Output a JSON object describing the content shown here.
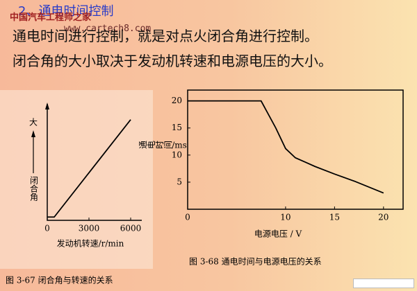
{
  "title": "2、通电时间控制",
  "watermark": [
    "中国汽车工程师之家",
    "www.cartech8.com"
  ],
  "body": [
    "通电时间进行控制，就是对点火闭合角进行控制。",
    "闭合角的大小取决于发动机转速和电源电压的大小。"
  ],
  "chart_data": [
    {
      "type": "line",
      "caption": "图 3-67  闭合角与转速的关系",
      "x_label": "发动机转速/r/min",
      "y_label": "闭合角",
      "y_max_label": "大",
      "x": [
        0,
        500,
        6000
      ],
      "values": [
        3,
        3,
        92
      ],
      "color": "#000000",
      "xlim": [
        0,
        6600
      ],
      "xticks": [
        0,
        3000,
        6000
      ],
      "ylim": [
        0,
        100
      ]
    },
    {
      "type": "line",
      "caption": "图 3-68  通电时间与电源电压的关系",
      "x_label": "电源电压 / V",
      "y_label": "通电时间/ms",
      "x": [
        0,
        7.5,
        9,
        10,
        11,
        12,
        13,
        15,
        17,
        20
      ],
      "values": [
        20,
        20,
        15,
        11.2,
        9.5,
        8.7,
        7.9,
        6.5,
        5.2,
        3.0
      ],
      "color": "#000000",
      "xlim": [
        0,
        22
      ],
      "xticks": [
        0,
        10,
        15,
        20
      ],
      "ylim": [
        0,
        22
      ],
      "yticks": [
        5,
        10,
        15,
        20
      ]
    }
  ]
}
